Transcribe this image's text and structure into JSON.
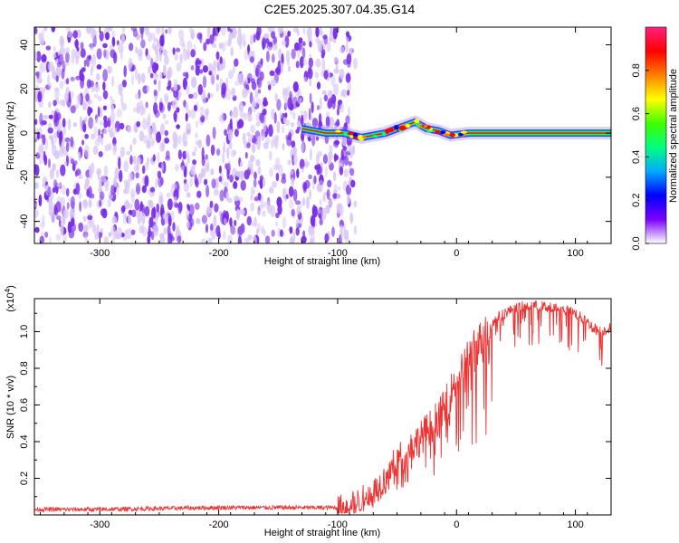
{
  "title": "C2E5.2025.307.04.35.G14",
  "colors": {
    "snr_line": "#ee3333",
    "background": "#ffffff",
    "axis": "#000000",
    "spectral_fill": "#7a2ee6",
    "spectral_light": "#d8c6f4",
    "track_line": "#1a8a3a"
  },
  "chart_data": [
    {
      "type": "heatmap",
      "title": "",
      "xlabel": "Height of straight line (km)",
      "ylabel": "Frequency (Hz)",
      "xlim": [
        -355,
        130
      ],
      "ylim": [
        -50,
        48
      ],
      "xticks": [
        -300,
        -200,
        -100,
        0,
        100
      ],
      "yticks": [
        40,
        20,
        0,
        -20,
        -40
      ],
      "xtick_labels": [
        "-300",
        "-200",
        "-100",
        "0",
        "100"
      ],
      "ytick_labels": [
        "40",
        "20",
        "0",
        "-20",
        "-40"
      ],
      "noise_region_x": [
        -355,
        -85
      ],
      "signal_track": {
        "x": [
          -130,
          -110,
          -95,
          -80,
          -60,
          -45,
          -35,
          -25,
          -15,
          -5,
          10,
          130
        ],
        "y": [
          2,
          0,
          0,
          -2,
          0,
          3,
          5,
          2,
          1,
          -1,
          0,
          0
        ]
      },
      "colorbar": {
        "label": "Normalized spectral amplitude",
        "ticks": [
          0.0,
          0.2,
          0.4,
          0.6,
          0.8
        ],
        "tick_labels": [
          "0.0",
          "0.2",
          "0.4",
          "0.6",
          "0.8"
        ],
        "range": [
          0,
          1
        ],
        "colormap": [
          "#ffffff",
          "#7b00ff",
          "#0000ff",
          "#00aaff",
          "#00ff80",
          "#40ff00",
          "#ffff00",
          "#ff8000",
          "#ff0000",
          "#ff2080"
        ]
      }
    },
    {
      "type": "line",
      "title": "",
      "xlabel": "Height of straight line (km)",
      "ylabel": "SNR (10 * v/v)",
      "scale_label": "(x10",
      "scale_exponent": "4",
      "scale_close": ")",
      "xlim": [
        -355,
        130
      ],
      "ylim": [
        0,
        1.18
      ],
      "xticks": [
        -300,
        -200,
        -100,
        0,
        100
      ],
      "yticks": [
        0.2,
        0.4,
        0.6,
        0.8,
        1.0
      ],
      "xtick_labels": [
        "-300",
        "-200",
        "-100",
        "0",
        "100"
      ],
      "ytick_labels": [
        "0.2",
        "0.4",
        "0.6",
        "0.8",
        "1.0"
      ],
      "series": [
        {
          "name": "SNR",
          "x": [
            -355,
            -300,
            -200,
            -120,
            -100,
            -90,
            -80,
            -70,
            -60,
            -50,
            -40,
            -30,
            -20,
            -10,
            0,
            10,
            20,
            30,
            40,
            50,
            60,
            70,
            80,
            90,
            100,
            110,
            120,
            130
          ],
          "y": [
            0.03,
            0.03,
            0.04,
            0.04,
            0.04,
            0.05,
            0.08,
            0.12,
            0.2,
            0.3,
            0.36,
            0.42,
            0.5,
            0.58,
            0.75,
            0.86,
            0.95,
            1.05,
            1.1,
            1.13,
            1.14,
            1.14,
            1.13,
            1.12,
            1.1,
            1.05,
            1.0,
            1.02
          ]
        }
      ]
    }
  ]
}
